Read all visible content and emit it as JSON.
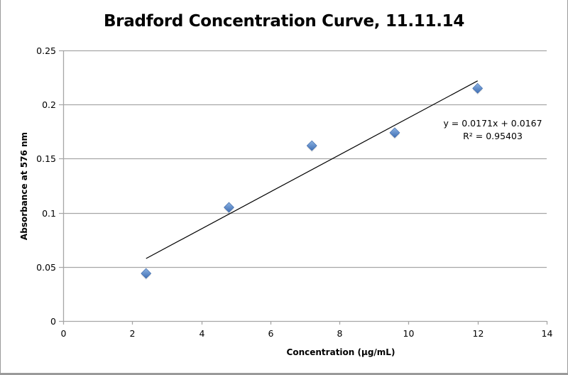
{
  "chart_data": {
    "type": "scatter",
    "title": "Bradford Concentration Curve, 11.11.14",
    "xlabel": "Concentration (µg/mL)",
    "ylabel": "Absorbance at 576 nm",
    "xlim": [
      0,
      14
    ],
    "ylim": [
      0,
      0.25
    ],
    "x_ticks": [
      "0",
      "2",
      "4",
      "6",
      "8",
      "10",
      "12",
      "14"
    ],
    "y_ticks": [
      "0",
      "0.05",
      "0.1",
      "0.15",
      "0.2",
      "0.25"
    ],
    "grid": "horizontal",
    "legend": "none",
    "series": [
      {
        "name": "Absorbance",
        "marker": "diamond",
        "color": "#4f81bd",
        "x": [
          2.4,
          4.8,
          7.2,
          9.6,
          12
        ],
        "y": [
          0.044,
          0.105,
          0.162,
          0.174,
          0.215
        ]
      }
    ],
    "trendline": {
      "type": "linear",
      "slope": 0.0171,
      "intercept": 0.0167,
      "x_range": [
        2.4,
        12
      ],
      "equation": "y = 0.0171x + 0.0167",
      "r_squared_label": "R² = 0.95403"
    }
  },
  "colors": {
    "marker": "#4f81bd",
    "grid": "#a6a6a6",
    "trendline": "#000000",
    "frame": "#9a9a9a"
  }
}
